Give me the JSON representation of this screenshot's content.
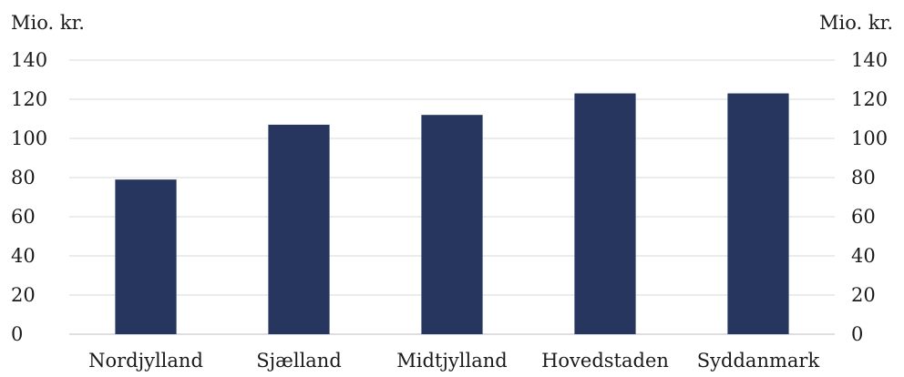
{
  "chart_data": {
    "type": "bar",
    "categories": [
      "Nordjylland",
      "Sjælland",
      "Midtjylland",
      "Hovedstaden",
      "Syddanmark"
    ],
    "values": [
      79,
      107,
      112,
      123,
      123
    ],
    "title": "",
    "xlabel": "",
    "ylabel_left": "Mio. kr.",
    "ylabel_right": "Mio. kr.",
    "ylim": [
      0,
      140
    ],
    "yticks": [
      0,
      20,
      40,
      60,
      80,
      100,
      120,
      140
    ],
    "grid": true,
    "legend": "none",
    "bar_color": "#27365f"
  }
}
